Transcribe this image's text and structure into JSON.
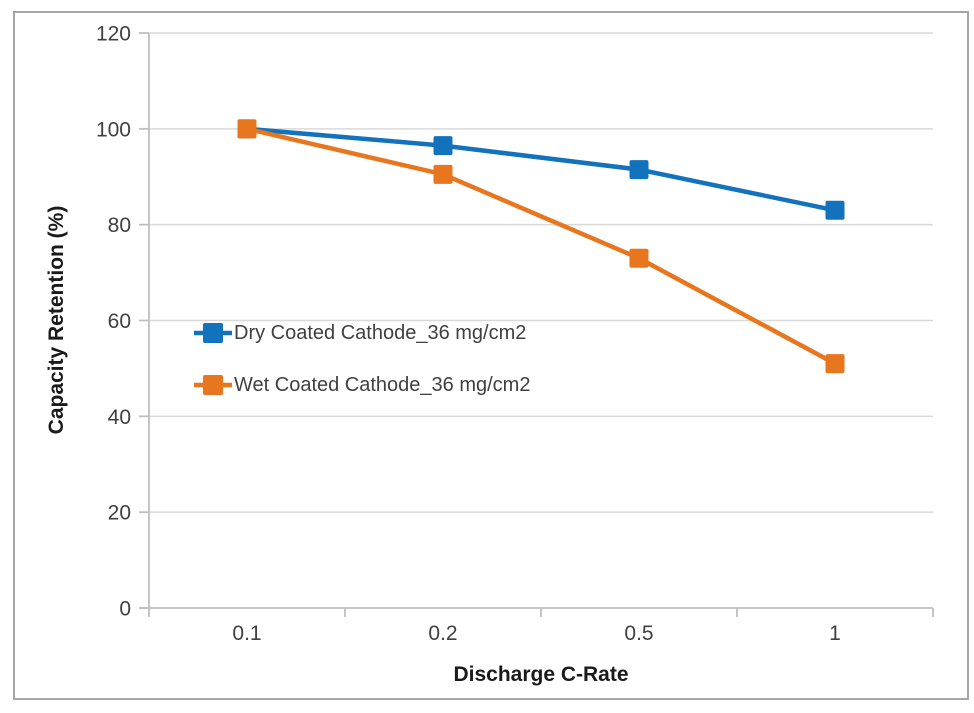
{
  "chart_data": {
    "type": "line",
    "categories": [
      "0.1",
      "0.2",
      "0.5",
      "1"
    ],
    "series": [
      {
        "name": "Dry Coated Cathode_36 mg/cm2",
        "color": "#1272BC",
        "marker": "square",
        "values": [
          100,
          96.5,
          91.5,
          83
        ]
      },
      {
        "name": "Wet Coated Cathode_36 mg/cm2",
        "color": "#E8761E",
        "marker": "square",
        "values": [
          100,
          90.5,
          73,
          51
        ]
      }
    ],
    "xlabel": "Discharge C-Rate",
    "ylabel": "Capacity Retention (%)",
    "ylim": [
      0,
      120
    ],
    "yticks": [
      0,
      20,
      40,
      60,
      80,
      100,
      120
    ],
    "grid": "horizontal",
    "legend_position": "inside-left-middle"
  },
  "colors": {
    "background": "#FFFFFF",
    "chart_border": "#A6A6A6",
    "axis_line": "#BFBFBF",
    "gridline": "#D9D9D9",
    "tick_label": "#404040",
    "axis_title": "#1A1A1A",
    "legend_text": "#404040"
  }
}
